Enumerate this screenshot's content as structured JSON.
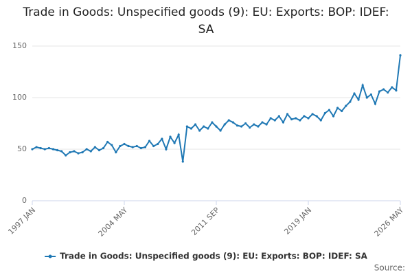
{
  "chart_data": {
    "type": "line",
    "title": "Trade in Goods: Unspecified goods (9): EU: Exports: BOP: IDEF: SA",
    "source": "Source:",
    "categories": [
      "1997 JAN",
      null,
      null,
      null,
      null,
      null,
      null,
      null,
      null,
      null,
      null,
      null,
      null,
      null,
      null,
      null,
      null,
      null,
      null,
      null,
      null,
      null,
      "2004 MAY",
      null,
      null,
      null,
      null,
      null,
      null,
      null,
      null,
      null,
      null,
      null,
      null,
      null,
      null,
      null,
      null,
      null,
      null,
      null,
      null,
      null,
      "2011 SEP",
      null,
      null,
      null,
      null,
      null,
      null,
      null,
      null,
      null,
      null,
      null,
      null,
      null,
      null,
      null,
      null,
      null,
      null,
      null,
      null,
      null,
      "2019 JAN",
      null,
      null,
      null,
      null,
      null,
      null,
      null,
      null,
      null,
      null,
      null,
      null,
      null,
      null,
      null,
      null,
      null,
      null,
      null,
      null,
      null,
      "2026 MAY"
    ],
    "series": [
      {
        "name": "Trade in Goods: Unspecified goods (9): EU: Exports: BOP: IDEF: SA",
        "color": "#1f78b4",
        "values": [
          50,
          52,
          51,
          50,
          51,
          50,
          49,
          48,
          44,
          47,
          48,
          46,
          47,
          50,
          48,
          52,
          49,
          51,
          57,
          54,
          47,
          53,
          55,
          53,
          52,
          53,
          51,
          52,
          58,
          53,
          55,
          60,
          50,
          62,
          56,
          64,
          38,
          72,
          70,
          74,
          68,
          72,
          70,
          76,
          72,
          68,
          74,
          78,
          76,
          73,
          72,
          75,
          71,
          74,
          72,
          76,
          74,
          80,
          78,
          82,
          76,
          84,
          79,
          80,
          78,
          82,
          80,
          84,
          82,
          78,
          85,
          88,
          82,
          90,
          87,
          92,
          96,
          104,
          98,
          112,
          100,
          103,
          94,
          106,
          108,
          105,
          110,
          107,
          141
        ]
      }
    ],
    "ylim": [
      0,
      150
    ],
    "yticks": [
      0,
      50,
      100,
      150
    ],
    "grid": true,
    "legend": "bottom"
  }
}
